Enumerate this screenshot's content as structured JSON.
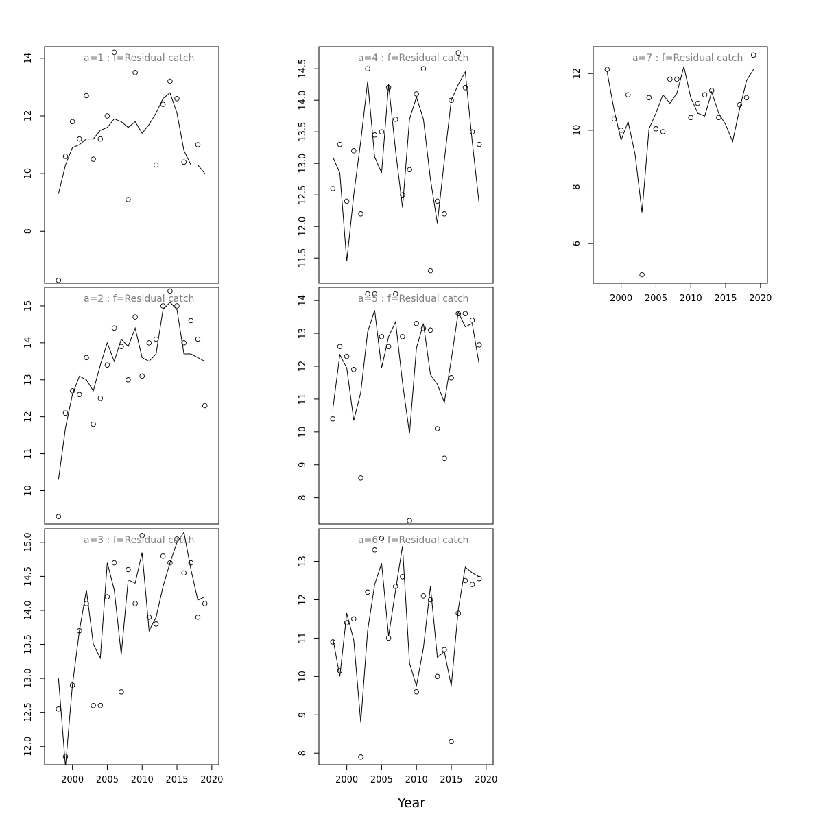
{
  "figure": {
    "xlabel": "Year"
  },
  "chart_data": [
    {
      "type": "scatter",
      "title": "a=1 : f=Residual catch",
      "xlim": [
        1996,
        2021
      ],
      "ylim": [
        6.2,
        14.4
      ],
      "xticks": [],
      "yticks": [
        8,
        10,
        12,
        14
      ],
      "years": [
        1998,
        1999,
        2000,
        2001,
        2002,
        2003,
        2004,
        2005,
        2006,
        2007,
        2008,
        2009,
        2010,
        2011,
        2012,
        2013,
        2014,
        2015,
        2016,
        2017,
        2018,
        2019
      ],
      "series": [
        {
          "name": "observed",
          "values": [
            6.3,
            10.6,
            11.8,
            11.2,
            12.7,
            10.5,
            11.2,
            12.0,
            14.2,
            null,
            9.1,
            13.5,
            null,
            null,
            10.3,
            12.4,
            13.2,
            12.6,
            10.4,
            null,
            11.0,
            null
          ]
        },
        {
          "name": "fitted",
          "values": [
            9.3,
            10.3,
            10.9,
            11.0,
            11.2,
            11.2,
            11.5,
            11.6,
            11.9,
            11.8,
            11.6,
            11.8,
            11.4,
            11.7,
            12.1,
            12.6,
            12.8,
            12.1,
            10.8,
            10.3,
            10.3,
            10.0
          ]
        }
      ]
    },
    {
      "type": "scatter",
      "title": "a=2 : f=Residual catch",
      "xlim": [
        1996,
        2021
      ],
      "ylim": [
        9.1,
        15.5
      ],
      "xticks": [],
      "yticks": [
        10,
        11,
        12,
        13,
        14,
        15
      ],
      "years": [
        1998,
        1999,
        2000,
        2001,
        2002,
        2003,
        2004,
        2005,
        2006,
        2007,
        2008,
        2009,
        2010,
        2011,
        2012,
        2013,
        2014,
        2015,
        2016,
        2017,
        2018,
        2019
      ],
      "series": [
        {
          "name": "observed",
          "values": [
            9.3,
            12.1,
            12.7,
            12.6,
            13.6,
            11.8,
            12.5,
            13.4,
            14.4,
            13.9,
            13.0,
            14.7,
            13.1,
            14.0,
            14.1,
            15.0,
            15.4,
            15.0,
            14.0,
            14.6,
            14.1,
            12.3
          ]
        },
        {
          "name": "fitted",
          "values": [
            10.3,
            11.7,
            12.6,
            13.1,
            13.0,
            12.7,
            13.4,
            14.0,
            13.5,
            14.1,
            13.9,
            14.4,
            13.6,
            13.5,
            13.7,
            14.9,
            15.1,
            14.9,
            13.7,
            13.7,
            13.6,
            13.5
          ]
        }
      ]
    },
    {
      "type": "scatter",
      "title": "a=3 : f=Residual catch",
      "xlim": [
        1996,
        2021
      ],
      "ylim": [
        11.73,
        15.2
      ],
      "xticks": [
        2000,
        2005,
        2010,
        2015,
        2020
      ],
      "yticks": [
        12.0,
        12.5,
        13.0,
        13.5,
        14.0,
        14.5,
        15.0
      ],
      "years": [
        1998,
        1999,
        2000,
        2001,
        2002,
        2003,
        2004,
        2005,
        2006,
        2007,
        2008,
        2009,
        2010,
        2011,
        2012,
        2013,
        2014,
        2015,
        2016,
        2017,
        2018,
        2019
      ],
      "series": [
        {
          "name": "observed",
          "values": [
            12.55,
            11.85,
            12.9,
            13.7,
            14.1,
            12.6,
            12.6,
            14.2,
            14.7,
            12.8,
            14.6,
            14.1,
            15.1,
            13.9,
            13.8,
            14.8,
            14.7,
            15.05,
            14.55,
            14.7,
            13.9,
            14.1
          ]
        },
        {
          "name": "fitted",
          "values": [
            13.0,
            11.7,
            12.9,
            13.7,
            14.3,
            13.5,
            13.3,
            14.7,
            14.3,
            13.35,
            14.45,
            14.4,
            14.85,
            13.7,
            13.9,
            14.35,
            14.7,
            15.0,
            15.15,
            14.6,
            14.15,
            14.2
          ]
        }
      ]
    },
    {
      "type": "scatter",
      "title": "a=4 : f=Residual catch",
      "xlim": [
        1996,
        2021
      ],
      "ylim": [
        11.1,
        14.85
      ],
      "xticks": [],
      "yticks": [
        11.5,
        12.0,
        12.5,
        13.0,
        13.5,
        14.0,
        14.5
      ],
      "years": [
        1998,
        1999,
        2000,
        2001,
        2002,
        2003,
        2004,
        2005,
        2006,
        2007,
        2008,
        2009,
        2010,
        2011,
        2012,
        2013,
        2014,
        2015,
        2016,
        2017,
        2018,
        2019
      ],
      "series": [
        {
          "name": "observed",
          "values": [
            12.6,
            13.3,
            12.4,
            13.2,
            12.2,
            14.5,
            13.45,
            13.5,
            14.2,
            13.7,
            12.5,
            12.9,
            14.1,
            14.5,
            11.3,
            12.4,
            12.2,
            14.0,
            14.75,
            14.2,
            13.5,
            13.3
          ]
        },
        {
          "name": "fitted",
          "values": [
            13.1,
            12.85,
            11.45,
            12.5,
            13.35,
            14.3,
            13.1,
            12.85,
            14.25,
            13.2,
            12.3,
            13.7,
            14.05,
            13.7,
            12.75,
            12.05,
            13.05,
            14.0,
            14.25,
            14.45,
            13.35,
            12.35
          ]
        }
      ]
    },
    {
      "type": "scatter",
      "title": "a=5 : f=Residual catch",
      "xlim": [
        1996,
        2021
      ],
      "ylim": [
        7.2,
        14.4
      ],
      "xticks": [],
      "yticks": [
        8,
        9,
        10,
        11,
        12,
        13,
        14
      ],
      "years": [
        1998,
        1999,
        2000,
        2001,
        2002,
        2003,
        2004,
        2005,
        2006,
        2007,
        2008,
        2009,
        2010,
        2011,
        2012,
        2013,
        2014,
        2015,
        2016,
        2017,
        2018,
        2019
      ],
      "series": [
        {
          "name": "observed",
          "values": [
            10.4,
            12.6,
            12.3,
            11.9,
            8.6,
            14.2,
            14.2,
            12.9,
            12.6,
            14.2,
            12.9,
            7.3,
            13.3,
            13.15,
            13.1,
            10.1,
            9.2,
            11.65,
            13.6,
            13.6,
            13.4,
            12.65
          ]
        },
        {
          "name": "fitted",
          "values": [
            10.7,
            12.35,
            11.95,
            10.35,
            11.2,
            13.05,
            13.7,
            11.95,
            12.9,
            13.35,
            11.5,
            9.95,
            12.55,
            13.3,
            11.75,
            11.45,
            10.9,
            12.2,
            13.65,
            13.2,
            13.3,
            12.05
          ]
        }
      ]
    },
    {
      "type": "scatter",
      "title": "a=6 : f=Residual catch",
      "xlim": [
        1996,
        2021
      ],
      "ylim": [
        7.7,
        13.85
      ],
      "xticks": [
        2000,
        2005,
        2010,
        2015,
        2020
      ],
      "yticks": [
        8,
        9,
        10,
        11,
        12,
        13
      ],
      "years": [
        1998,
        1999,
        2000,
        2001,
        2002,
        2003,
        2004,
        2005,
        2006,
        2007,
        2008,
        2009,
        2010,
        2011,
        2012,
        2013,
        2014,
        2015,
        2016,
        2017,
        2018,
        2019
      ],
      "series": [
        {
          "name": "observed",
          "values": [
            10.9,
            10.15,
            11.4,
            11.5,
            7.9,
            12.2,
            13.3,
            13.6,
            11.0,
            12.35,
            12.6,
            null,
            9.6,
            12.1,
            12.0,
            10.0,
            10.7,
            8.3,
            11.65,
            12.5,
            12.4,
            12.55
          ]
        },
        {
          "name": "fitted",
          "values": [
            11.0,
            10.0,
            11.65,
            10.95,
            8.8,
            11.2,
            12.4,
            12.95,
            11.05,
            12.25,
            13.4,
            10.35,
            9.75,
            10.75,
            12.35,
            10.5,
            10.65,
            9.75,
            11.75,
            12.85,
            12.7,
            12.6
          ]
        }
      ]
    },
    {
      "type": "scatter",
      "title": "a=7 : f=Residual catch",
      "xlim": [
        1996,
        2021
      ],
      "ylim": [
        4.6,
        12.95
      ],
      "xticks": [
        2000,
        2005,
        2010,
        2015,
        2020
      ],
      "yticks": [
        6,
        8,
        10,
        12
      ],
      "years": [
        1998,
        1999,
        2000,
        2001,
        2002,
        2003,
        2004,
        2005,
        2006,
        2007,
        2008,
        2009,
        2010,
        2011,
        2012,
        2013,
        2014,
        2015,
        2016,
        2017,
        2018,
        2019
      ],
      "series": [
        {
          "name": "observed",
          "values": [
            12.15,
            10.4,
            10.0,
            11.25,
            null,
            4.9,
            11.15,
            10.05,
            9.95,
            11.8,
            11.8,
            null,
            10.45,
            10.95,
            11.25,
            11.4,
            10.45,
            null,
            null,
            10.9,
            11.15,
            12.65
          ]
        },
        {
          "name": "fitted",
          "values": [
            12.05,
            10.7,
            9.65,
            10.3,
            9.15,
            7.1,
            10.05,
            10.6,
            11.25,
            10.95,
            11.3,
            12.25,
            11.15,
            10.6,
            10.5,
            11.35,
            10.6,
            10.2,
            9.6,
            10.75,
            11.75,
            12.15
          ]
        }
      ]
    }
  ]
}
